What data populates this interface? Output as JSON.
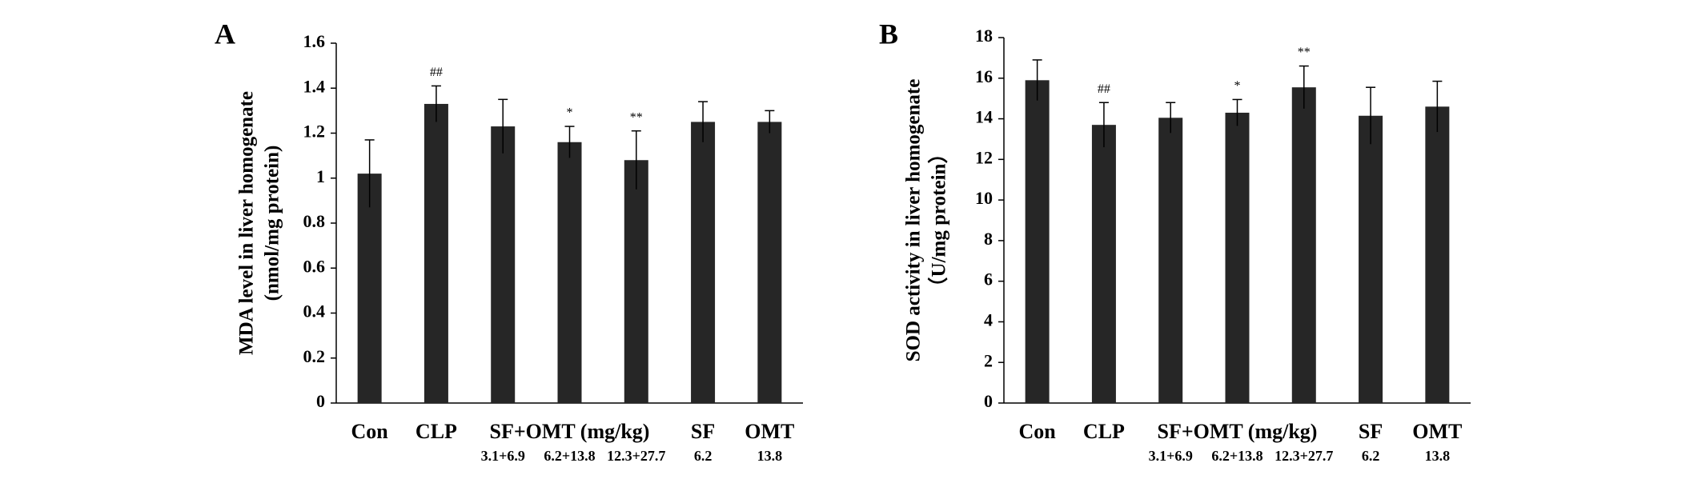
{
  "chart_data": [
    {
      "type": "bar",
      "panel": "A",
      "y_label": [
        "MDA level in liver homogenate",
        "(nmol/mg protein)"
      ],
      "categories": [
        "Con",
        "CLP",
        "3.1+6.9",
        "6.2+13.8",
        "12.3+27.7",
        "SF",
        "OMT"
      ],
      "sublabels": [
        null,
        null,
        null,
        null,
        null,
        "6.2",
        "13.8"
      ],
      "group_label": "SF+OMT (mg/kg)",
      "values": [
        1.02,
        1.33,
        1.23,
        1.16,
        1.08,
        1.25,
        1.25
      ],
      "errors": [
        0.15,
        0.08,
        0.12,
        0.07,
        0.13,
        0.09,
        0.05
      ],
      "annotations": [
        null,
        "##",
        null,
        "*",
        "**",
        null,
        null
      ],
      "color": "#262626",
      "ylim": [
        0,
        1.6
      ],
      "yticks": [
        0,
        0.2,
        0.4,
        0.6,
        0.8,
        1,
        1.2,
        1.4,
        1.6
      ]
    },
    {
      "type": "bar",
      "panel": "B",
      "y_label": [
        "SOD activity in liver homogenate",
        "（U/mg protein）"
      ],
      "categories": [
        "Con",
        "CLP",
        "3.1+6.9",
        "6.2+13.8",
        "12.3+27.7",
        "SF",
        "OMT"
      ],
      "sublabels": [
        null,
        null,
        null,
        null,
        null,
        "6.2",
        "13.8"
      ],
      "group_label": "SF+OMT (mg/kg)",
      "values": [
        15.9,
        13.7,
        14.05,
        14.3,
        15.55,
        14.15,
        14.6
      ],
      "errors": [
        1.0,
        1.1,
        0.75,
        0.65,
        1.05,
        1.4,
        1.25
      ],
      "annotations": [
        null,
        "##",
        null,
        "*",
        "**",
        null,
        null
      ],
      "color": "#262626",
      "ylim": [
        0,
        18
      ],
      "yticks": [
        0,
        2,
        4,
        6,
        8,
        10,
        12,
        14,
        16,
        18
      ]
    }
  ]
}
